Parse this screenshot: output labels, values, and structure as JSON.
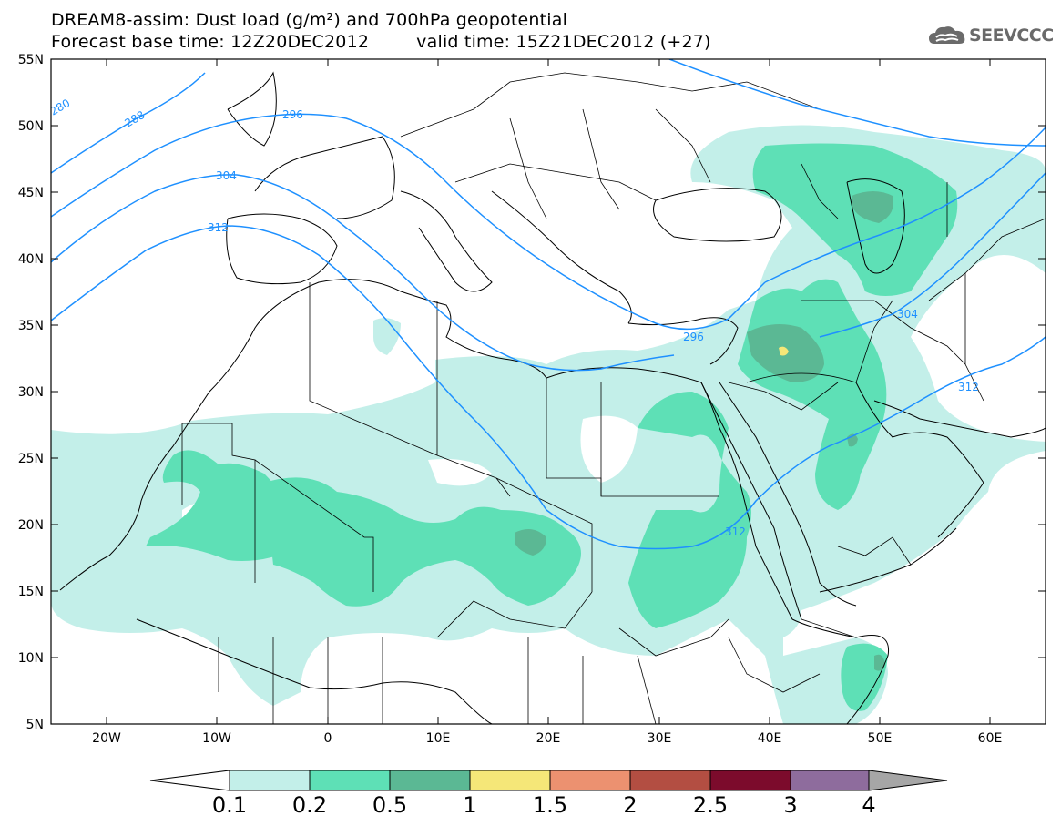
{
  "header": {
    "line1": "DREAM8-assim: Dust load (g/m²) and 700hPa geopotential",
    "base_time": "Forecast base time: 12Z20DEC2012",
    "valid_time": "valid time: 15Z21DEC2012 (+27)"
  },
  "logo": {
    "text": "SEEVCCC",
    "icon": "cloud-logo-icon"
  },
  "map": {
    "lat_labels": [
      "55N",
      "50N",
      "45N",
      "40N",
      "35N",
      "30N",
      "25N",
      "20N",
      "15N",
      "10N",
      "5N"
    ],
    "lon_labels": [
      "20W",
      "10W",
      "0",
      "10E",
      "20E",
      "30E",
      "40E",
      "50E",
      "60E"
    ],
    "extent": {
      "lon_min": -25,
      "lon_max": 65,
      "lat_min": 5,
      "lat_max": 55
    },
    "contour_labels": [
      "280",
      "288",
      "296",
      "304",
      "312",
      "296",
      "304",
      "312",
      "312"
    ],
    "contour_color": "#1e90ff"
  },
  "colorbar": {
    "levels": [
      "0.1",
      "0.2",
      "0.5",
      "1",
      "1.5",
      "2",
      "2.5",
      "3",
      "4"
    ],
    "colors": [
      "#c3efe9",
      "#5ee0b6",
      "#5bb894",
      "#f5e778",
      "#ec9170",
      "#b34e42",
      "#7c0b2c",
      "#8e6c9d",
      "#a6a6a6"
    ],
    "under_color": "#ffffff"
  }
}
